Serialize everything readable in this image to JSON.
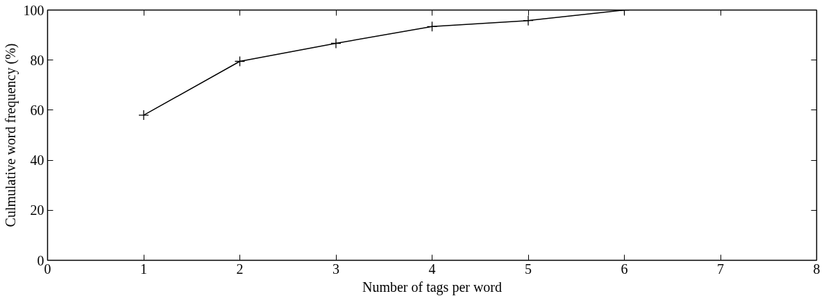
{
  "chart_data": {
    "type": "line",
    "xlabel": "Number of tags per word",
    "ylabel": "Culmulative word frequency (%)",
    "x": [
      1,
      2,
      3,
      4,
      5,
      6
    ],
    "series": [
      {
        "color": "#000000",
        "values": [
          58,
          79.5,
          86.7,
          93.4,
          95.8,
          100
        ]
      }
    ],
    "xlim": [
      0,
      8
    ],
    "ylim": [
      0,
      100
    ],
    "xticks": [
      0,
      1,
      2,
      3,
      4,
      5,
      6,
      7,
      8
    ],
    "yticks": [
      0,
      20,
      40,
      60,
      80,
      100
    ],
    "grid": false,
    "marker": "cross",
    "line_style": "solid"
  }
}
